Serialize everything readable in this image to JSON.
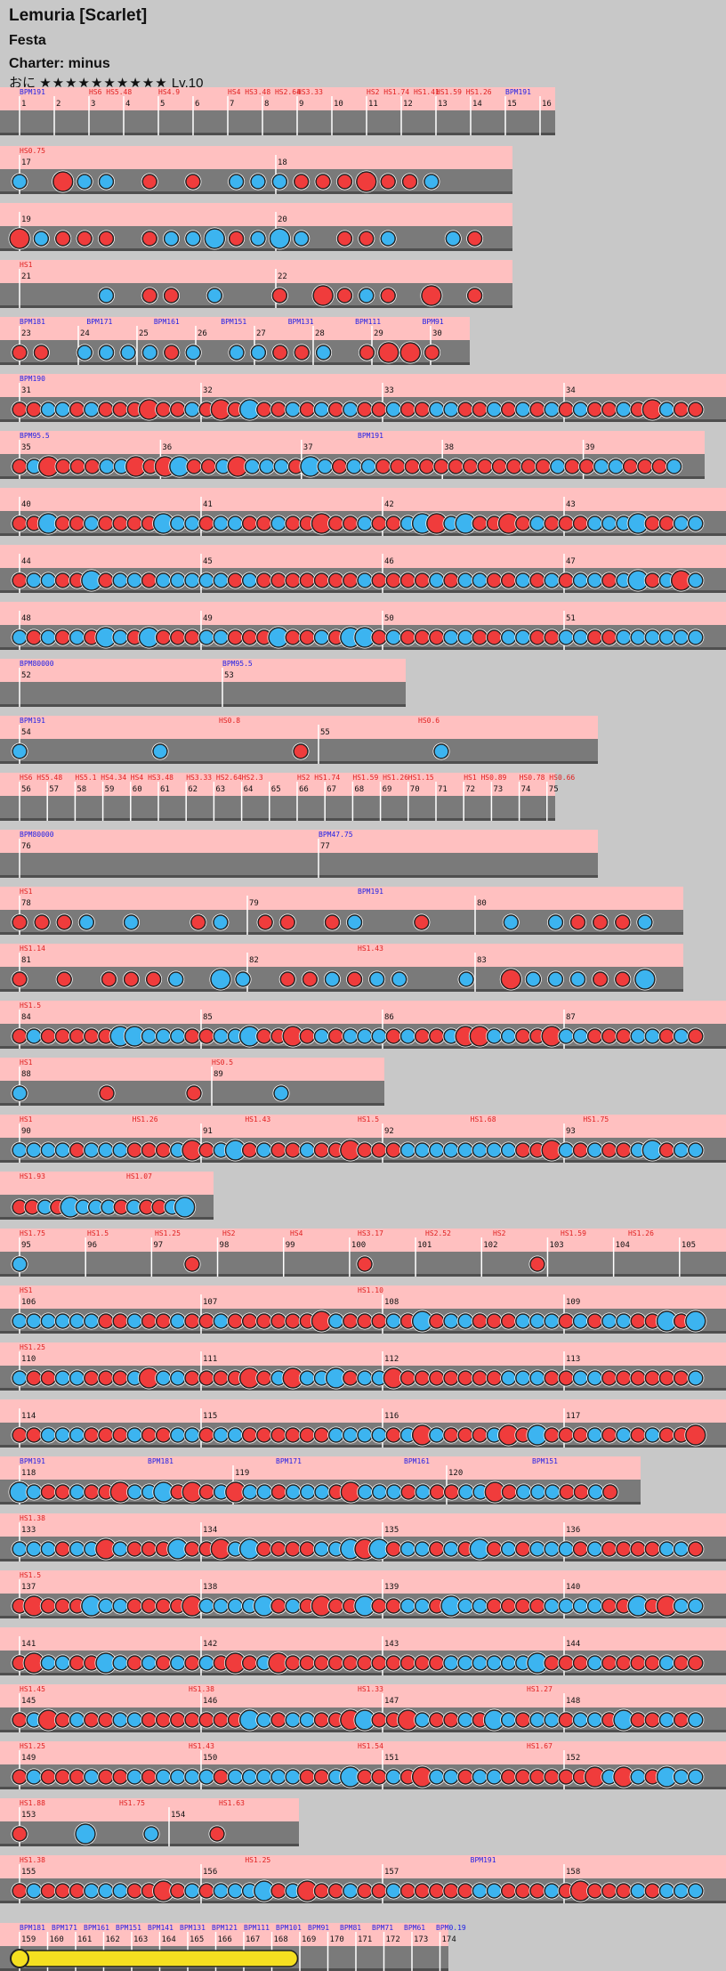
{
  "header": {
    "title": "Lemuria [Scarlet]",
    "subtitle": "Festa",
    "charter": "Charter: minus",
    "difficulty_label": "おに",
    "stars": "★★★★★★★★★★",
    "level": "Lv.10"
  },
  "colors": {
    "background": "#c8c8c8",
    "lane": "#7a7a7a",
    "lane_dark": "#4f4f4f",
    "band": "#ffc0c0",
    "don": "#f03c3c",
    "ka": "#3cb4f0",
    "drumroll": "#f5e020",
    "bpm_text": "#1e1ee6",
    "hs_text": "#e01e1e",
    "measure_text": "#111111"
  },
  "rows": [
    {
      "measures": [
        "1",
        "2",
        "3",
        "4",
        "5",
        "6",
        "7",
        "8",
        "9",
        "10",
        "11",
        "12",
        "13",
        "14",
        "15",
        "16"
      ],
      "labels": [
        "BPM191",
        "HS6 HS5.48",
        "HS4.9",
        "HS4 HS3.48 HS2.64",
        "HS3.33",
        "HS2 HS1.74 HS1.41",
        "HS1.59 HS1.26",
        "BPM191"
      ],
      "notes": "none"
    },
    {
      "measures": [
        "17",
        "18"
      ],
      "labels": [
        "HS0.75"
      ],
      "notes": "mixed"
    },
    {
      "measures": [
        "19",
        "20"
      ],
      "labels": [],
      "notes": "mixed"
    },
    {
      "measures": [
        "21",
        "22"
      ],
      "labels": [
        "HS1"
      ],
      "notes": "mixed"
    },
    {
      "measures": [
        "23",
        "24",
        "25",
        "26",
        "27",
        "28",
        "29",
        "30"
      ],
      "labels": [
        "BPM181",
        "BPM171",
        "BPM161",
        "BPM151",
        "BPM131",
        "BPM111",
        "BPM91"
      ],
      "notes": "mixed"
    },
    {
      "measures": [
        "31",
        "32",
        "33",
        "34"
      ],
      "labels": [
        "BPM190"
      ],
      "notes": "dense"
    },
    {
      "measures": [
        "35",
        "36",
        "37",
        "38",
        "39"
      ],
      "labels": [
        "BPM95.5",
        "BPM191"
      ],
      "notes": "dense"
    },
    {
      "measures": [
        "40",
        "41",
        "42",
        "43"
      ],
      "labels": [],
      "notes": "dense"
    },
    {
      "measures": [
        "44",
        "45",
        "46",
        "47"
      ],
      "labels": [],
      "notes": "dense"
    },
    {
      "measures": [
        "48",
        "49",
        "50",
        "51"
      ],
      "labels": [],
      "notes": "dense"
    },
    {
      "measures": [
        "52",
        "53"
      ],
      "labels": [
        "BPM80000",
        "BPM95.5"
      ],
      "notes": "none"
    },
    {
      "measures": [
        "54",
        "55"
      ],
      "labels": [
        "BPM191",
        "HS0.8",
        "HS0.6"
      ],
      "notes": "sparse"
    },
    {
      "measures": [
        "56",
        "57",
        "58",
        "59",
        "60",
        "61",
        "62",
        "63",
        "64",
        "65",
        "66",
        "67",
        "68",
        "69",
        "70",
        "71",
        "72",
        "73",
        "74",
        "75"
      ],
      "labels": [
        "HS6 HS5.48",
        "HS5.1 HS4.34",
        "HS4 HS3.48",
        "HS3.33 HS2.64",
        "HS2.3",
        "HS2 HS1.74",
        "HS1.59 HS1.26",
        "HS1.15",
        "HS1 HS0.89",
        "HS0.78 HS0.66"
      ],
      "notes": "none"
    },
    {
      "measures": [
        "76",
        "77"
      ],
      "labels": [
        "BPM80000",
        "BPM47.75"
      ],
      "notes": "none"
    },
    {
      "measures": [
        "78",
        "79",
        "80"
      ],
      "labels": [
        "HS1",
        "BPM191"
      ],
      "notes": "mixed"
    },
    {
      "measures": [
        "81",
        "82",
        "83"
      ],
      "labels": [
        "HS1.14",
        "HS1.43"
      ],
      "notes": "mixed"
    },
    {
      "measures": [
        "84",
        "85",
        "86",
        "87"
      ],
      "labels": [
        "HS1.5"
      ],
      "notes": "dense"
    },
    {
      "measures": [
        "88",
        "89"
      ],
      "labels": [
        "HS1",
        "HS0.5"
      ],
      "notes": "sparse"
    },
    {
      "measures": [
        "90",
        "91",
        "92",
        "93"
      ],
      "labels": [
        "HS1",
        "HS1.26",
        "HS1.43",
        "HS1.5",
        "HS1.68",
        "HS1.75"
      ],
      "notes": "dense"
    },
    {
      "measures": [],
      "labels": [
        "HS1.93",
        "HS1.07"
      ],
      "notes": "dense"
    },
    {
      "measures": [
        "95",
        "96",
        "97",
        "98",
        "99",
        "100",
        "101",
        "102",
        "103",
        "104",
        "105"
      ],
      "labels": [
        "HS1.75",
        "HS1.5",
        "HS1.25",
        "HS2",
        "HS4",
        "HS3.17",
        "HS2.52",
        "HS2",
        "HS1.59",
        "HS1.26"
      ],
      "notes": "sparse"
    },
    {
      "measures": [
        "106",
        "107",
        "108",
        "109"
      ],
      "labels": [
        "HS1",
        "HS1.10"
      ],
      "notes": "dense"
    },
    {
      "measures": [
        "110",
        "111",
        "112",
        "113"
      ],
      "labels": [
        "HS1.25"
      ],
      "notes": "dense"
    },
    {
      "measures": [
        "114",
        "115",
        "116",
        "117"
      ],
      "labels": [],
      "notes": "dense"
    },
    {
      "measures": [
        "118",
        "119",
        "120"
      ],
      "labels": [
        "BPM191",
        "BPM181",
        "BPM171",
        "BPM161",
        "BPM151"
      ],
      "notes": "dense"
    },
    {
      "measures": [
        "133",
        "134",
        "135",
        "136"
      ],
      "labels": [
        "HS1.38"
      ],
      "notes": "dense"
    },
    {
      "measures": [
        "137",
        "138",
        "139",
        "140"
      ],
      "labels": [
        "HS1.5"
      ],
      "notes": "dense"
    },
    {
      "measures": [
        "141",
        "142",
        "143",
        "144"
      ],
      "labels": [],
      "notes": "dense"
    },
    {
      "measures": [
        "145",
        "146",
        "147",
        "148"
      ],
      "labels": [
        "HS1.45",
        "HS1.38",
        "HS1.33",
        "HS1.27"
      ],
      "notes": "dense"
    },
    {
      "measures": [
        "149",
        "150",
        "151",
        "152"
      ],
      "labels": [
        "HS1.25",
        "HS1.43",
        "HS1.54",
        "HS1.67"
      ],
      "notes": "dense"
    },
    {
      "measures": [
        "153",
        "154"
      ],
      "labels": [
        "HS1.88",
        "HS1.75",
        "HS1.63"
      ],
      "notes": "sparse"
    },
    {
      "measures": [
        "155",
        "156",
        "157",
        "158"
      ],
      "labels": [
        "HS1.38",
        "HS1.25",
        "BPM191"
      ],
      "notes": "dense"
    },
    {
      "measures": [
        "159",
        "160",
        "161",
        "162",
        "163",
        "164",
        "165",
        "166",
        "167",
        "168",
        "169",
        "170",
        "171",
        "172",
        "173",
        "174"
      ],
      "labels": [
        "BPM181",
        "BPM171",
        "BPM161",
        "BPM151",
        "BPM141",
        "BPM131",
        "BPM121",
        "BPM111",
        "BPM101",
        "BPM91",
        "BPM81",
        "BPM71",
        "BPM61",
        "BPM0.19"
      ],
      "notes": "roll"
    }
  ]
}
